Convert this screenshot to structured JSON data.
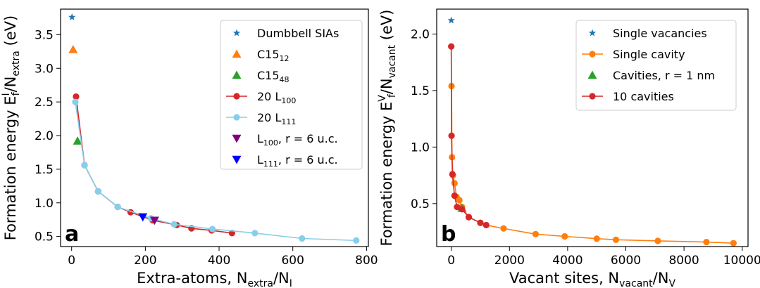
{
  "chart_data": [
    {
      "type": "scatter",
      "panel_label": "a",
      "xlabel": {
        "text": "Extra-atoms, N",
        "sub1": "extra",
        "mid": "/N",
        "sub2": "I"
      },
      "ylabel": {
        "text": "Formation energy E",
        "sup": "I",
        "sub": "f",
        "mid": "/N",
        "sub2": "extra",
        "unit": " (eV)"
      },
      "xlim": [
        -30,
        805
      ],
      "ylim": [
        0.35,
        3.88
      ],
      "xticks": [
        0,
        200,
        400,
        600,
        800
      ],
      "yticks": [
        0.5,
        1.0,
        1.5,
        2.0,
        2.5,
        3.0,
        3.5
      ],
      "xtick_labels": [
        "0",
        "200",
        "400",
        "600",
        "800"
      ],
      "ytick_labels": [
        "0.5",
        "1.0",
        "1.5",
        "2.0",
        "2.5",
        "3.0",
        "3.5"
      ],
      "legend_position": "top-right",
      "series": [
        {
          "id": "dumbbell",
          "name": "Dumbbell SIAs",
          "marker": "star",
          "color": "#1f77b4",
          "line": false,
          "x": [
            1
          ],
          "y": [
            3.76
          ]
        },
        {
          "id": "c15_12",
          "name": "C15",
          "name_sub": "12",
          "marker": "triangle-up",
          "color": "#ff7f0e",
          "line": false,
          "x": [
            4
          ],
          "y": [
            3.28
          ]
        },
        {
          "id": "c15_48",
          "name": "C15",
          "name_sub": "48",
          "marker": "triangle-up",
          "color": "#2ca02c",
          "line": false,
          "x": [
            16
          ],
          "y": [
            1.92
          ]
        },
        {
          "id": "l100",
          "name": "20 L",
          "name_sub": "100",
          "marker": "circle",
          "color": "#d62728",
          "line": true,
          "x": [
            12,
            35,
            72,
            125,
            160,
            220,
            285,
            325,
            380,
            435
          ],
          "y": [
            2.58,
            1.56,
            1.17,
            0.94,
            0.86,
            0.74,
            0.67,
            0.62,
            0.59,
            0.55
          ]
        },
        {
          "id": "l111",
          "name": "20 L",
          "name_sub": "111",
          "marker": "circle",
          "color": "#87ceeb",
          "line": true,
          "x": [
            10,
            35,
            72,
            125,
            215,
            278,
            382,
            497,
            625,
            772
          ],
          "y": [
            2.5,
            1.56,
            1.17,
            0.94,
            0.77,
            0.68,
            0.61,
            0.55,
            0.47,
            0.44
          ]
        },
        {
          "id": "l100_r6",
          "name": "L",
          "name_sub": "100",
          "name_tail": ", r = 6 u.c.",
          "marker": "triangle-down",
          "color": "#800080",
          "line": false,
          "x": [
            225
          ],
          "y": [
            0.74
          ]
        },
        {
          "id": "l111_r6",
          "name": "L",
          "name_sub": "111",
          "name_tail": ", r = 6 u.c.",
          "marker": "triangle-down",
          "color": "#0000ff",
          "line": false,
          "x": [
            193
          ],
          "y": [
            0.79
          ]
        }
      ]
    },
    {
      "type": "scatter",
      "panel_label": "b",
      "xlabel": {
        "text": "Vacant sites, N",
        "sub1": "vacant",
        "mid": "/N",
        "sub2": "V"
      },
      "ylabel": {
        "text": "Formation energy E",
        "sup": "V",
        "sub": "f",
        "mid": "/N",
        "sub2": "vacant",
        "unit": " (eV)"
      },
      "xlim": [
        -500,
        10200
      ],
      "ylim": [
        0.12,
        2.22
      ],
      "xticks": [
        0,
        2000,
        4000,
        6000,
        8000,
        10000
      ],
      "yticks": [
        0.5,
        1.0,
        1.5,
        2.0
      ],
      "xtick_labels": [
        "0",
        "2000",
        "4000",
        "6000",
        "8000",
        "10000"
      ],
      "ytick_labels": [
        "0.5",
        "1.0",
        "1.5",
        "2.0"
      ],
      "legend_position": "top-right",
      "series": [
        {
          "id": "single_vac",
          "name": "Single vacancies",
          "marker": "star",
          "color": "#1f77b4",
          "line": false,
          "x": [
            1
          ],
          "y": [
            2.12
          ]
        },
        {
          "id": "single_cavity",
          "name": "Single cavity",
          "marker": "circle",
          "color": "#ff7f0e",
          "line": true,
          "x": [
            10,
            25,
            60,
            113,
            181,
            281,
            369,
            603,
            1000,
            1200,
            1800,
            2900,
            3900,
            5000,
            5660,
            7100,
            8770,
            9700
          ],
          "y": [
            1.54,
            0.91,
            0.75,
            0.68,
            0.56,
            0.53,
            0.47,
            0.38,
            0.33,
            0.31,
            0.28,
            0.23,
            0.21,
            0.19,
            0.18,
            0.17,
            0.16,
            0.15
          ]
        },
        {
          "id": "cavities_r1",
          "name": "Cavities, r = 1 nm",
          "marker": "triangle-up",
          "color": "#2ca02c",
          "line": false,
          "x": [
            369
          ],
          "y": [
            0.46
          ]
        },
        {
          "id": "ten_cavities",
          "name": "10 cavities",
          "marker": "circle",
          "color": "#d62728",
          "line": true,
          "x": [
            0,
            10,
            40,
            113,
            200,
            369,
            603,
            1000,
            1200
          ],
          "y": [
            1.89,
            1.1,
            0.76,
            0.57,
            0.47,
            0.45,
            0.38,
            0.33,
            0.31
          ]
        }
      ]
    }
  ]
}
